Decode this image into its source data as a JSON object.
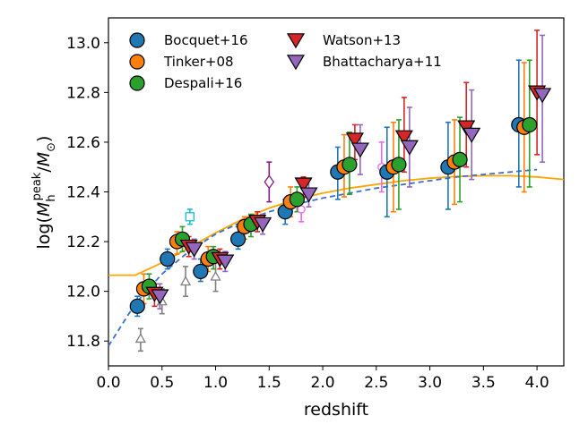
{
  "chart_data": {
    "type": "scatter",
    "xlabel": "redshift",
    "ylabel": {
      "main": "log(",
      "sym_M": "M",
      "sup": "peak",
      "sub": "h",
      "slash": "/",
      "sym_Msun": "M",
      "sun": "⊙",
      "close": ")"
    },
    "xlim": [
      0.0,
      4.25
    ],
    "ylim": [
      11.7,
      13.1
    ],
    "xticks": [
      "0.0",
      "0.5",
      "1.0",
      "1.5",
      "2.0",
      "2.5",
      "3.0",
      "3.5",
      "4.0"
    ],
    "yticks": [
      "11.8",
      "12.0",
      "12.2",
      "12.4",
      "12.6",
      "12.8",
      "13.0"
    ],
    "legend_placement": "top-left",
    "series": [
      {
        "name": "Bocquet+16",
        "marker": "circle",
        "color": "#1f77b4",
        "points": [
          {
            "x": 0.27,
            "y": 11.94,
            "lo": 11.9,
            "hi": 11.98
          },
          {
            "x": 0.55,
            "y": 12.13,
            "lo": 12.09,
            "hi": 12.17
          },
          {
            "x": 0.86,
            "y": 12.08,
            "lo": 12.04,
            "hi": 12.13
          },
          {
            "x": 1.21,
            "y": 12.21,
            "lo": 12.17,
            "hi": 12.26
          },
          {
            "x": 1.65,
            "y": 12.32,
            "lo": 12.27,
            "hi": 12.37
          },
          {
            "x": 2.14,
            "y": 12.48,
            "lo": 12.37,
            "hi": 12.58
          },
          {
            "x": 2.6,
            "y": 12.48,
            "lo": 12.3,
            "hi": 12.66
          },
          {
            "x": 3.17,
            "y": 12.5,
            "lo": 12.33,
            "hi": 12.68
          },
          {
            "x": 3.83,
            "y": 12.67,
            "lo": 12.42,
            "hi": 12.93
          }
        ]
      },
      {
        "name": "Tinker+08",
        "marker": "circle",
        "color": "#ff7f0e",
        "points": [
          {
            "x": 0.33,
            "y": 12.01,
            "lo": 11.95,
            "hi": 12.07
          },
          {
            "x": 0.64,
            "y": 12.2,
            "lo": 12.15,
            "hi": 12.24
          },
          {
            "x": 0.93,
            "y": 12.13,
            "lo": 12.08,
            "hi": 12.18
          },
          {
            "x": 1.27,
            "y": 12.26,
            "lo": 12.21,
            "hi": 12.3
          },
          {
            "x": 1.7,
            "y": 12.36,
            "lo": 12.3,
            "hi": 12.42
          },
          {
            "x": 2.2,
            "y": 12.5,
            "lo": 12.38,
            "hi": 12.63
          },
          {
            "x": 2.66,
            "y": 12.5,
            "lo": 12.32,
            "hi": 12.68
          },
          {
            "x": 3.23,
            "y": 12.52,
            "lo": 12.35,
            "hi": 12.69
          },
          {
            "x": 3.88,
            "y": 12.66,
            "lo": 12.4,
            "hi": 12.92
          }
        ]
      },
      {
        "name": "Despali+16",
        "marker": "circle",
        "color": "#2ca02c",
        "points": [
          {
            "x": 0.38,
            "y": 12.02,
            "lo": 11.97,
            "hi": 12.07
          },
          {
            "x": 0.69,
            "y": 12.21,
            "lo": 12.16,
            "hi": 12.26
          },
          {
            "x": 0.98,
            "y": 12.14,
            "lo": 12.09,
            "hi": 12.18
          },
          {
            "x": 1.33,
            "y": 12.27,
            "lo": 12.22,
            "hi": 12.31
          },
          {
            "x": 1.76,
            "y": 12.37,
            "lo": 12.32,
            "hi": 12.42
          },
          {
            "x": 2.25,
            "y": 12.51,
            "lo": 12.39,
            "hi": 12.64
          },
          {
            "x": 2.71,
            "y": 12.51,
            "lo": 12.33,
            "hi": 12.69
          },
          {
            "x": 3.28,
            "y": 12.53,
            "lo": 12.36,
            "hi": 12.7
          },
          {
            "x": 3.93,
            "y": 12.67,
            "lo": 12.42,
            "hi": 12.93
          }
        ]
      },
      {
        "name": "Watson+13",
        "marker": "triangle-down",
        "color": "#d62728",
        "points": [
          {
            "x": 0.43,
            "y": 11.99,
            "lo": 11.94,
            "hi": 12.03
          },
          {
            "x": 0.75,
            "y": 12.18,
            "lo": 12.14,
            "hi": 12.22
          },
          {
            "x": 1.04,
            "y": 12.13,
            "lo": 12.09,
            "hi": 12.17
          },
          {
            "x": 1.39,
            "y": 12.28,
            "lo": 12.24,
            "hi": 12.32
          },
          {
            "x": 1.82,
            "y": 12.43,
            "lo": 12.38,
            "hi": 12.46
          },
          {
            "x": 2.3,
            "y": 12.61,
            "lo": 12.53,
            "hi": 12.67
          },
          {
            "x": 2.76,
            "y": 12.62,
            "lo": 12.48,
            "hi": 12.78
          },
          {
            "x": 3.34,
            "y": 12.66,
            "lo": 12.5,
            "hi": 12.84
          },
          {
            "x": 4.0,
            "y": 12.8,
            "lo": 12.55,
            "hi": 13.05
          }
        ]
      },
      {
        "name": "Bhattacharya+11",
        "marker": "triangle-down",
        "color": "#9467bd",
        "points": [
          {
            "x": 0.48,
            "y": 11.98,
            "lo": 11.93,
            "hi": 12.03
          },
          {
            "x": 0.8,
            "y": 12.17,
            "lo": 12.13,
            "hi": 12.21
          },
          {
            "x": 1.09,
            "y": 12.12,
            "lo": 12.08,
            "hi": 12.16
          },
          {
            "x": 1.44,
            "y": 12.27,
            "lo": 12.23,
            "hi": 12.31
          },
          {
            "x": 1.87,
            "y": 12.39,
            "lo": 12.34,
            "hi": 12.45
          },
          {
            "x": 2.35,
            "y": 12.57,
            "lo": 12.47,
            "hi": 12.67
          },
          {
            "x": 2.81,
            "y": 12.58,
            "lo": 12.42,
            "hi": 12.74
          },
          {
            "x": 3.39,
            "y": 12.63,
            "lo": 12.45,
            "hi": 12.81
          },
          {
            "x": 4.05,
            "y": 12.79,
            "lo": 12.52,
            "hi": 13.03
          }
        ]
      }
    ],
    "extra_points": [
      {
        "marker": "triangle-up-open",
        "color": "#808080",
        "points": [
          {
            "x": 0.3,
            "y": 11.81,
            "lo": 11.76,
            "hi": 11.85
          },
          {
            "x": 0.5,
            "y": 11.96,
            "lo": 11.91,
            "hi": 12.01
          },
          {
            "x": 0.72,
            "y": 12.04,
            "lo": 11.98,
            "hi": 12.1
          },
          {
            "x": 1.0,
            "y": 12.06,
            "lo": 12.0,
            "hi": 12.12
          }
        ]
      },
      {
        "marker": "square-open",
        "color": "#17becf",
        "points": [
          {
            "x": 0.76,
            "y": 12.3,
            "lo": 12.27,
            "hi": 12.33
          }
        ]
      },
      {
        "marker": "diamond-open",
        "color": "#7f1f7f",
        "points": [
          {
            "x": 1.5,
            "y": 12.44,
            "lo": 12.36,
            "hi": 12.52
          }
        ]
      },
      {
        "marker": "circle-open",
        "color": "#ee66ee",
        "points": [
          {
            "x": 1.8,
            "y": 12.33,
            "lo": 12.28,
            "hi": 12.38
          },
          {
            "x": 2.55,
            "y": 12.5,
            "lo": 12.4,
            "hi": 12.6
          }
        ]
      }
    ],
    "curves": [
      {
        "style": "solid",
        "color": "#ffa500",
        "x": [
          0.0,
          0.25,
          0.5,
          0.75,
          1.0,
          1.25,
          1.5,
          1.75,
          2.0,
          2.25,
          2.5,
          2.75,
          3.0,
          3.25,
          3.5,
          3.75,
          4.0,
          4.25
        ],
        "y": [
          12.065,
          12.065,
          12.115,
          12.175,
          12.235,
          12.29,
          12.335,
          12.37,
          12.395,
          12.415,
          12.43,
          12.445,
          12.455,
          12.462,
          12.465,
          12.465,
          12.46,
          12.45
        ]
      },
      {
        "style": "dashed",
        "color": "#3b6fd4",
        "x": [
          0.0,
          0.25,
          0.5,
          0.75,
          1.0,
          1.25,
          1.5,
          1.75,
          2.0,
          2.25,
          2.5,
          2.75,
          3.0,
          3.25,
          3.5,
          3.75,
          4.0
        ],
        "y": [
          11.78,
          11.95,
          12.07,
          12.16,
          12.23,
          12.28,
          12.32,
          12.35,
          12.375,
          12.395,
          12.415,
          12.43,
          12.445,
          12.46,
          12.47,
          12.48,
          12.49
        ]
      }
    ]
  }
}
